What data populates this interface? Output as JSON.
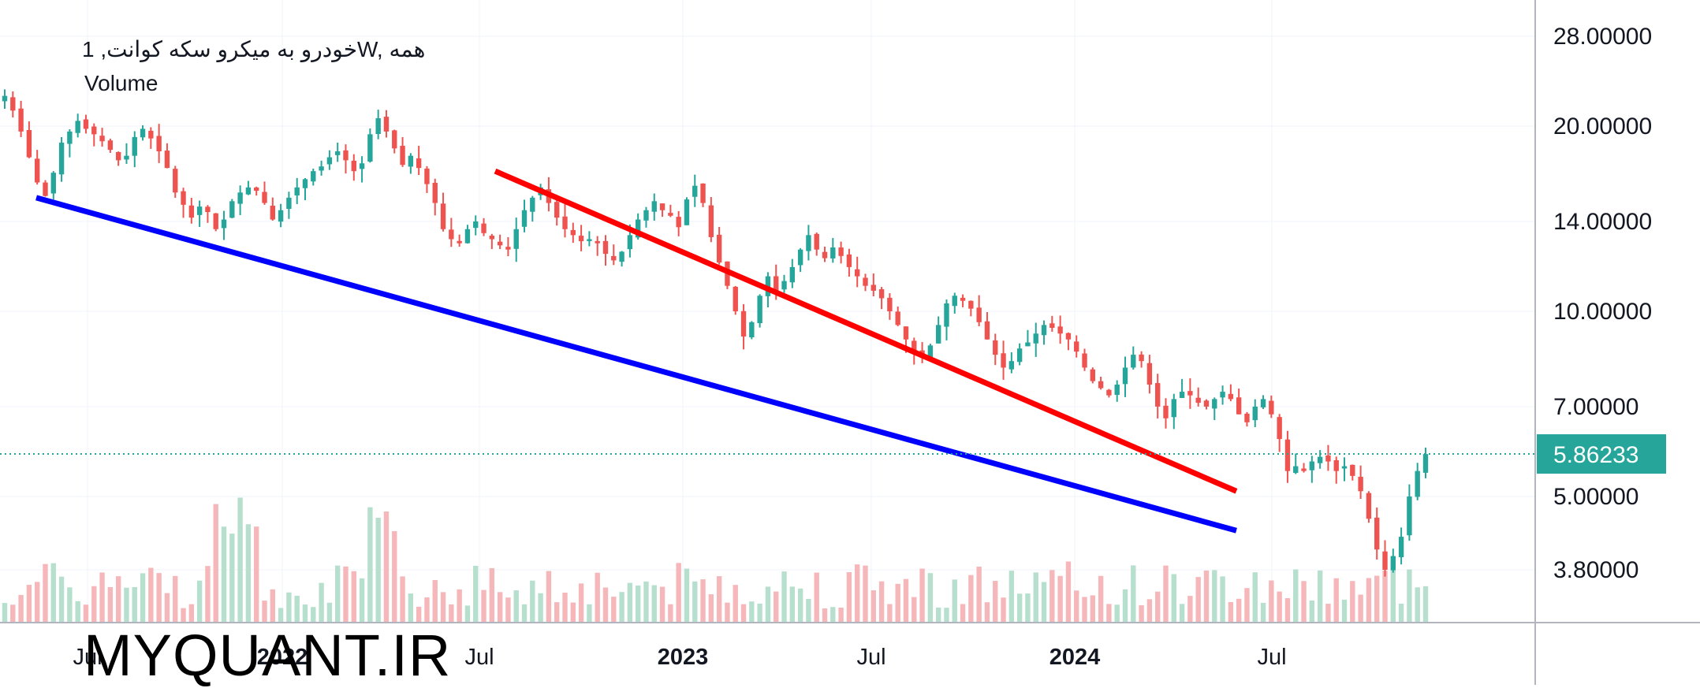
{
  "legend": {
    "title": "خودرو به میکرو سکه کوانت, 1W, همه",
    "volume_label": "Volume"
  },
  "watermark": "MYQUANT.IR",
  "price_axis": {
    "ticks": [
      "28.00000",
      "20.00000",
      "14.00000",
      "10.00000",
      "7.00000",
      "5.00000",
      "3.80000"
    ],
    "last_price_label": "5.86233"
  },
  "time_axis": {
    "ticks": [
      {
        "label": "Jul",
        "bold": false
      },
      {
        "label": "2022",
        "bold": true
      },
      {
        "label": "Jul",
        "bold": false
      },
      {
        "label": "2023",
        "bold": true
      },
      {
        "label": "Jul",
        "bold": false
      },
      {
        "label": "2024",
        "bold": true
      },
      {
        "label": "Jul",
        "bold": false
      }
    ]
  },
  "colors": {
    "up": "#26a69a",
    "down": "#ef5350",
    "volume_up": "#b7dfcd",
    "volume_down": "#f5b7ba",
    "resistance_line": "#ff0000",
    "support_line": "#0000ff",
    "last_price_badge": "#26a69a",
    "grid": "#f0f3fa",
    "axis_text": "#131722"
  },
  "chart_data": {
    "type": "candlestick",
    "interval": "1W",
    "scale": "log",
    "last_price": 5.86233,
    "y_ticks": [
      28,
      20,
      14,
      10,
      7,
      5,
      3.8
    ],
    "x_tick_labels": [
      "Jul",
      "2022",
      "Jul",
      "2023",
      "Jul",
      "2024",
      "Jul"
    ],
    "closes": [
      22.4,
      21.2,
      19.6,
      17.8,
      16.2,
      15.4,
      16.8,
      18.8,
      19.6,
      20.4,
      19.8,
      19.4,
      18.9,
      18.3,
      17.6,
      17.9,
      19.2,
      19.8,
      19.1,
      18.2,
      17.1,
      15.6,
      14.9,
      14.2,
      14.8,
      14.5,
      13.6,
      14.1,
      15.1,
      15.6,
      15.9,
      15.7,
      15.0,
      14.1,
      14.6,
      15.3,
      15.9,
      16.4,
      16.9,
      17.2,
      17.8,
      18.2,
      17.6,
      16.9,
      17.4,
      19.4,
      20.6,
      19.6,
      18.4,
      17.3,
      17.9,
      17.1,
      16.1,
      15.0,
      13.6,
      13.1,
      12.9,
      13.6,
      14.0,
      13.4,
      13.1,
      12.8,
      12.6,
      13.6,
      14.6,
      15.3,
      15.9,
      15.0,
      14.2,
      13.6,
      13.3,
      13.0,
      13.1,
      12.9,
      12.4,
      12.1,
      12.5,
      13.3,
      14.1,
      14.6,
      15.1,
      14.6,
      14.3,
      13.7,
      15.2,
      16.0,
      15.0,
      13.2,
      12.0,
      11.0,
      10.0,
      9.1,
      9.6,
      10.6,
      11.4,
      10.8,
      11.2,
      11.8,
      12.6,
      13.3,
      12.6,
      12.2,
      12.7,
      12.3,
      11.8,
      11.4,
      11.0,
      10.8,
      10.5,
      10.0,
      9.5,
      9.0,
      8.6,
      8.4,
      8.8,
      9.5,
      10.3,
      10.6,
      10.4,
      10.1,
      9.6,
      9.0,
      8.5,
      8.1,
      8.3,
      8.7,
      8.9,
      9.2,
      9.5,
      9.4,
      9.2,
      9.0,
      8.6,
      8.1,
      7.7,
      7.5,
      7.3,
      7.6,
      8.1,
      8.5,
      8.3,
      7.6,
      7.0,
      6.7,
      7.2,
      7.4,
      7.3,
      7.1,
      7.0,
      7.2,
      7.4,
      7.2,
      6.8,
      6.6,
      7.0,
      7.2,
      6.8,
      6.2,
      5.5,
      5.6,
      5.5,
      5.7,
      5.8,
      5.7,
      5.5,
      5.6,
      5.4,
      5.1,
      4.6,
      4.1,
      3.8,
      4.0,
      4.3,
      5.0,
      5.5,
      5.86
    ],
    "trendlines": [
      {
        "role": "resistance",
        "color": "red",
        "points": [
          [
            628,
            16.9
          ],
          [
            1568,
            5.1
          ]
        ]
      },
      {
        "role": "support",
        "color": "blue",
        "points": [
          [
            46,
            15.3
          ],
          [
            1568,
            4.4
          ]
        ]
      }
    ]
  }
}
